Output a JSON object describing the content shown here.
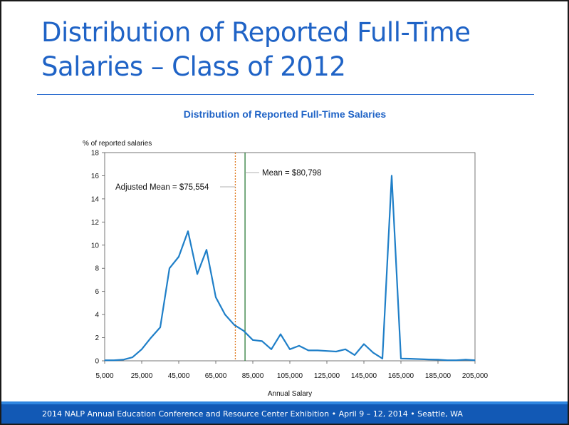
{
  "slide": {
    "title": "Distribution of Reported Full-Time Salaries – Class of 2012",
    "footer": "2014 NALP Annual Education Conference and Resource Center Exhibition • April 9 – 12, 2014 • Seattle, WA"
  },
  "colors": {
    "title": "#1f63c6",
    "chart_title": "#1f63c6",
    "line": "#1f7fc8",
    "mean_line": "#2e7d3a",
    "adjusted_mean_line": "#e07a1f",
    "footer_bg": "#1259b5"
  },
  "chart_data": {
    "type": "line",
    "title": "Distribution of Reported Full-Time Salaries",
    "xlabel": "Annual Salary",
    "ylabel": "% of reported salaries",
    "xlim": [
      5000,
      205000
    ],
    "ylim": [
      0,
      18
    ],
    "x_ticks": [
      5000,
      25000,
      45000,
      65000,
      85000,
      105000,
      125000,
      145000,
      165000,
      185000,
      205000
    ],
    "x_tick_labels": [
      "5,000",
      "25,000",
      "45,000",
      "65,000",
      "85,000",
      "105,000",
      "125,000",
      "145,000",
      "165,000",
      "185,000",
      "205,000"
    ],
    "y_ticks": [
      0,
      2,
      4,
      6,
      8,
      10,
      12,
      14,
      16,
      18
    ],
    "y_tick_labels": [
      "0",
      "2",
      "4",
      "6",
      "8",
      "10",
      "12",
      "14",
      "16",
      "18"
    ],
    "grid": false,
    "series": [
      {
        "x": [
          5000,
          10000,
          15000,
          20000,
          25000,
          30000,
          35000,
          40000,
          45000,
          50000,
          55000,
          60000,
          65000,
          70000,
          75000,
          80000,
          85000,
          90000,
          95000,
          100000,
          105000,
          110000,
          115000,
          120000,
          125000,
          130000,
          135000,
          140000,
          145000,
          150000,
          155000,
          160000,
          165000,
          170000,
          175000,
          180000,
          185000,
          190000,
          195000,
          200000,
          205000
        ],
        "y": [
          0.05,
          0.05,
          0.1,
          0.3,
          1.0,
          2.0,
          2.9,
          8.0,
          9.0,
          11.2,
          7.5,
          9.6,
          5.5,
          4.0,
          3.1,
          2.6,
          1.8,
          1.7,
          1.0,
          2.3,
          1.0,
          1.3,
          0.9,
          0.9,
          0.85,
          0.8,
          1.0,
          0.5,
          1.45,
          0.7,
          0.2,
          16.0,
          0.2,
          0.18,
          0.15,
          0.12,
          0.1,
          0.05,
          0.05,
          0.1,
          0.05
        ]
      }
    ],
    "reference_lines": [
      {
        "label": "Adjusted Mean = $75,554",
        "x": 75554,
        "style": "dotted"
      },
      {
        "label": "Mean = $80,798",
        "x": 80798,
        "style": "solid"
      }
    ]
  }
}
